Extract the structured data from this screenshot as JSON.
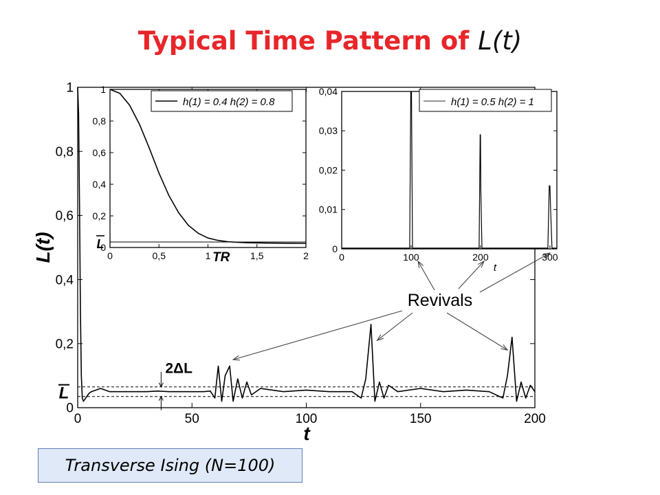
{
  "title": {
    "text": "Typical Time Pattern of ",
    "var": "L(t)"
  },
  "caption": "Transverse Ising (N=100)",
  "annotations": {
    "revivals": "Revivals",
    "spread": "2ΔL"
  },
  "colors": {
    "title": "#e8262a",
    "caption_bg": "#dfe9f7",
    "caption_border": "#5f7fb5",
    "line": "#000000"
  },
  "chart_data": [
    {
      "type": "line",
      "xlabel": "t",
      "ylabel": "L(t)",
      "xlim": [
        0,
        200
      ],
      "ylim": [
        0,
        1
      ],
      "xticks": [
        "0",
        "50",
        "100",
        "150",
        "200"
      ],
      "yticks": [
        "0",
        "0,2",
        "0,4",
        "0,6",
        "0,8",
        "1"
      ],
      "mean_label": "L",
      "mean_value": 0.05,
      "band": [
        0.035,
        0.065
      ],
      "revivals": [
        {
          "t": 61.5,
          "L": 0.13
        },
        {
          "t": 66.5,
          "L": 0.13
        },
        {
          "t": 128.3,
          "L": 0.26
        },
        {
          "t": 190,
          "L": 0.22
        }
      ],
      "series": [
        {
          "x": [
            0,
            0.4,
            0.8,
            1.2,
            1.6,
            2.0,
            2.5,
            3,
            4,
            5,
            6,
            8,
            10,
            12,
            14,
            16,
            20,
            25,
            30,
            35,
            40,
            45,
            50,
            55,
            58,
            60,
            61.5,
            63,
            64.5,
            66.5,
            68,
            70,
            72,
            74,
            76,
            80,
            90,
            100,
            110,
            120,
            124,
            126,
            128.3,
            130,
            132,
            134,
            136,
            140,
            150,
            160,
            170,
            180,
            186,
            188,
            190,
            192,
            194,
            196,
            198,
            200
          ],
          "y": [
            1,
            0.92,
            0.62,
            0.3,
            0.1,
            0.03,
            0.02,
            0.025,
            0.035,
            0.045,
            0.05,
            0.055,
            0.06,
            0.055,
            0.05,
            0.05,
            0.05,
            0.05,
            0.05,
            0.052,
            0.05,
            0.05,
            0.05,
            0.05,
            0.052,
            0.03,
            0.13,
            0.02,
            0.1,
            0.13,
            0.02,
            0.09,
            0.03,
            0.08,
            0.04,
            0.06,
            0.05,
            0.055,
            0.05,
            0.05,
            0.03,
            0.09,
            0.26,
            0.02,
            0.08,
            0.03,
            0.07,
            0.05,
            0.06,
            0.05,
            0.055,
            0.05,
            0.03,
            0.1,
            0.22,
            0.02,
            0.08,
            0.03,
            0.07,
            0.05
          ]
        }
      ]
    },
    {
      "type": "line",
      "legend": "h(1) = 0.4 h(2) = 0.8",
      "legend_position": "top-right",
      "xlim": [
        0,
        2
      ],
      "ylim": [
        0,
        1
      ],
      "xticks": [
        "0",
        "0,5",
        "1",
        "1,5",
        "2"
      ],
      "yticks": [
        "0",
        "0,2",
        "0,4",
        "0,6",
        "0,8",
        "1"
      ],
      "mean_label": "L",
      "mean_value": 0.035,
      "marker_label": "TR",
      "marker_x": 1.1,
      "series": [
        {
          "x": [
            0,
            0.1,
            0.2,
            0.3,
            0.4,
            0.5,
            0.6,
            0.7,
            0.8,
            0.9,
            1.0,
            1.1,
            1.2,
            1.3,
            1.4,
            1.5,
            1.6,
            1.8,
            2.0
          ],
          "y": [
            1,
            0.975,
            0.9,
            0.78,
            0.63,
            0.47,
            0.33,
            0.22,
            0.14,
            0.09,
            0.06,
            0.045,
            0.037,
            0.033,
            0.03,
            0.029,
            0.028,
            0.027,
            0.026
          ]
        }
      ]
    },
    {
      "type": "line",
      "legend": "h(1) = 0.5 h(2) = 1",
      "legend_position": "top-right",
      "xlabel": "t",
      "xlim": [
        0,
        310
      ],
      "ylim": [
        0,
        0.04
      ],
      "xticks": [
        "0",
        "100",
        "200",
        "300"
      ],
      "yticks": [
        "0",
        "0,01",
        "0,02",
        "0,03",
        "0,04"
      ],
      "series": [
        {
          "x": [
            0,
            98,
            99.5,
            100,
            100.5,
            102,
            198,
            199.5,
            200,
            200.5,
            202,
            297,
            299,
            300,
            301,
            303,
            310
          ],
          "y": [
            0.0002,
            0.0002,
            0.04,
            0.04,
            0.04,
            0.0002,
            0.0002,
            0.029,
            0.029,
            0.015,
            0.0002,
            0.0002,
            0.016,
            0.016,
            0.01,
            0.0002,
            0.0002
          ]
        }
      ]
    }
  ]
}
